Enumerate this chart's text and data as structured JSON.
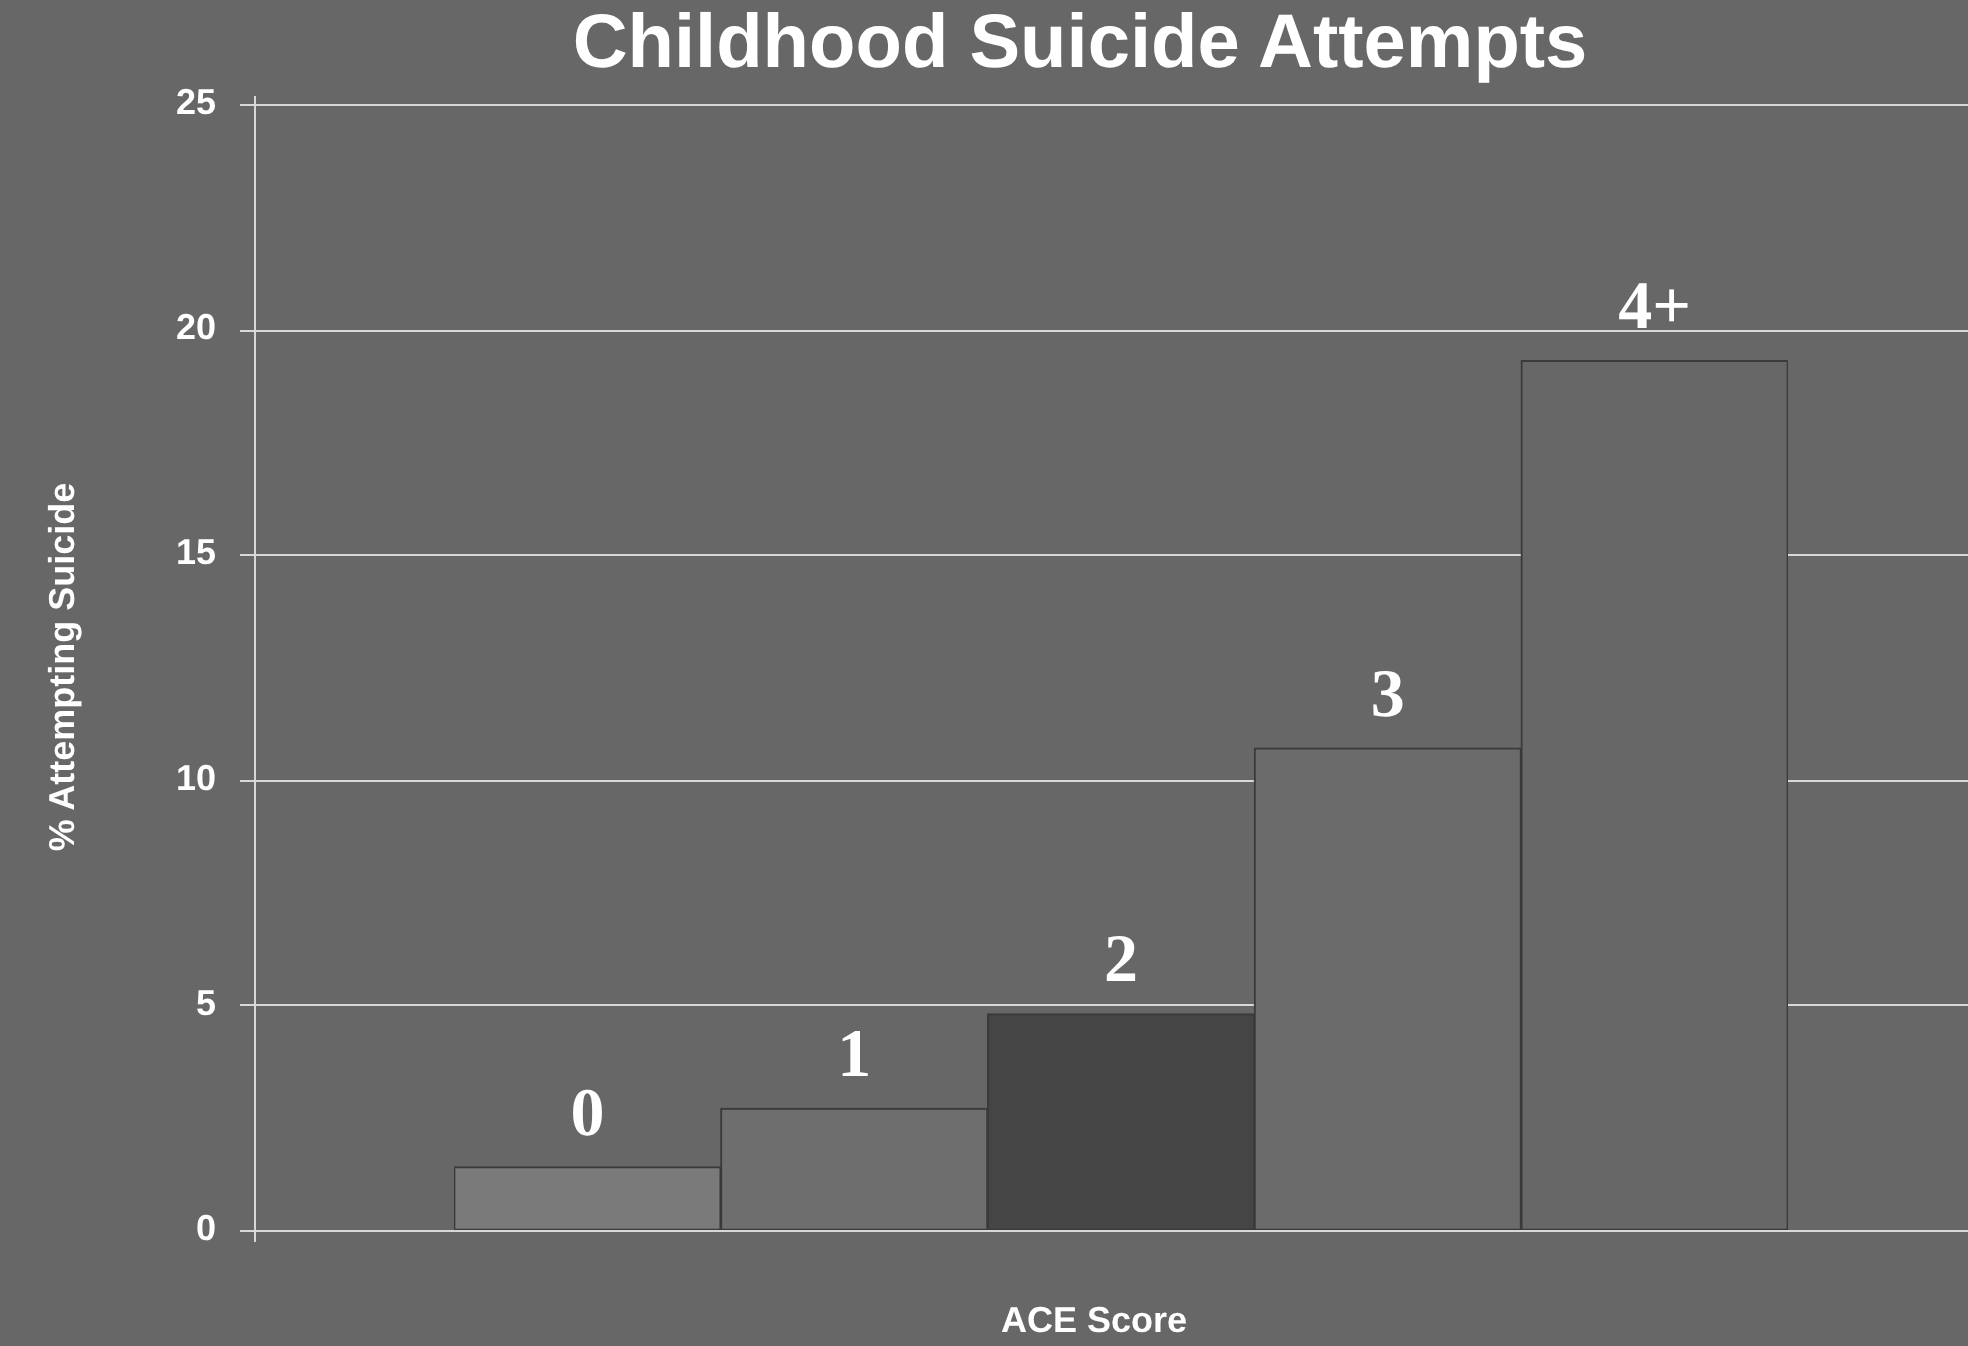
{
  "chart_data": {
    "type": "bar",
    "title": "Childhood Suicide Attempts",
    "xlabel": "ACE Score",
    "ylabel": "% Attempting Suicide",
    "categories": [
      "0",
      "1",
      "2",
      "3",
      "4+"
    ],
    "values": [
      1.4,
      2.7,
      4.8,
      10.7,
      19.3
    ],
    "colors": [
      "#7a7a7a",
      "#6e6e6e",
      "#454545",
      "#6b6b6b",
      "#676767"
    ],
    "ylim": [
      0,
      25
    ],
    "yticks": [
      0,
      5,
      10,
      15,
      20,
      25
    ],
    "grid": "y"
  }
}
